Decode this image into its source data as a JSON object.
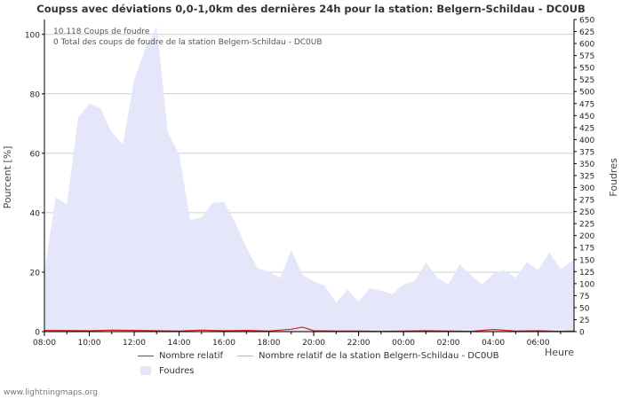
{
  "chart_data": {
    "type": "area",
    "title": "Coupss avec déviations 0,0-1,0km des dernières 24h pour la station: Belgern-Schildau - DC0UB",
    "xlabel": "Heure",
    "ylabel_left": "Pourcent   [%]",
    "ylabel_right": "Foudres",
    "y_left_range": [
      0,
      105
    ],
    "y_left_ticks": [
      0,
      20,
      40,
      60,
      80,
      100
    ],
    "y_right_range": [
      0,
      650
    ],
    "y_right_ticks": [
      0,
      25,
      50,
      75,
      100,
      125,
      150,
      175,
      200,
      225,
      250,
      275,
      300,
      325,
      350,
      375,
      400,
      425,
      450,
      475,
      500,
      525,
      550,
      575,
      600,
      625,
      650
    ],
    "x_range_hours": [
      8,
      31.6
    ],
    "x_ticks": [
      {
        "h": 8,
        "label": "08:00"
      },
      {
        "h": 10,
        "label": "10:00"
      },
      {
        "h": 12,
        "label": "12:00"
      },
      {
        "h": 14,
        "label": "14:00"
      },
      {
        "h": 16,
        "label": "16:00"
      },
      {
        "h": 18,
        "label": "18:00"
      },
      {
        "h": 20,
        "label": "20:00"
      },
      {
        "h": 22,
        "label": "22:00"
      },
      {
        "h": 24,
        "label": "00:00"
      },
      {
        "h": 26,
        "label": "02:00"
      },
      {
        "h": 28,
        "label": "04:00"
      },
      {
        "h": 30,
        "label": "06:00"
      }
    ],
    "annotations": [
      "10.118  Coups de foudre",
      "0 Total des coups de foudre de la station Belgern-Schildau - DC0UB"
    ],
    "series": [
      {
        "name": "Foudres",
        "color": "#e6e6fa",
        "axis": "right",
        "x": [
          8,
          8.5,
          9,
          9.5,
          10,
          10.5,
          11,
          11.5,
          12,
          12.5,
          13,
          13.5,
          14,
          14.5,
          15,
          15.5,
          16,
          16.5,
          17,
          17.5,
          18,
          18.5,
          19,
          19.5,
          20,
          20.5,
          21,
          21.5,
          22,
          22.5,
          23,
          23.5,
          24,
          24.5,
          25,
          25.5,
          26,
          26.5,
          27,
          27.5,
          28,
          28.5,
          29,
          29.5,
          30,
          30.5,
          31,
          31.6
        ],
        "values": [
          125,
          280,
          265,
          445,
          475,
          465,
          415,
          390,
          525,
          590,
          635,
          415,
          370,
          232,
          238,
          268,
          270,
          228,
          175,
          132,
          125,
          112,
          170,
          118,
          105,
          95,
          60,
          88,
          62,
          90,
          85,
          78,
          98,
          105,
          145,
          112,
          98,
          140,
          118,
          98,
          120,
          128,
          112,
          145,
          128,
          165,
          130,
          150
        ]
      },
      {
        "name": "Nombre relatif",
        "color": "#cc2222",
        "axis": "left",
        "x": [
          8,
          10,
          11,
          12,
          13,
          14,
          15,
          16,
          17,
          18,
          19,
          19.5,
          20,
          21,
          22,
          23,
          24,
          25,
          26,
          27,
          28,
          29,
          30,
          31,
          31.6
        ],
        "values": [
          0.4,
          0.3,
          0.5,
          0.4,
          0.3,
          0.2,
          0.5,
          0.3,
          0.4,
          0.2,
          0.8,
          1.5,
          0.3,
          0.2,
          0.2,
          0.1,
          0.2,
          0.3,
          0.2,
          0.1,
          0.7,
          0.2,
          0.3,
          0.1,
          0.2
        ]
      },
      {
        "name": "Nombre relatif de la station Belgern-Schildau - DC0UB",
        "color": "#f0a090",
        "axis": "left",
        "x": [
          8,
          31.6
        ],
        "values": [
          0,
          0
        ]
      }
    ],
    "legend": [
      {
        "label": "Nombre relatif",
        "color": "#cc2222",
        "kind": "line"
      },
      {
        "label": "Nombre relatif de la station Belgern-Schildau - DC0UB",
        "color": "#f0a090",
        "kind": "line"
      },
      {
        "label": "Foudres",
        "color": "#e6e6fa",
        "kind": "box"
      }
    ]
  },
  "footer": {
    "credit": "www.lightningmaps.org"
  }
}
